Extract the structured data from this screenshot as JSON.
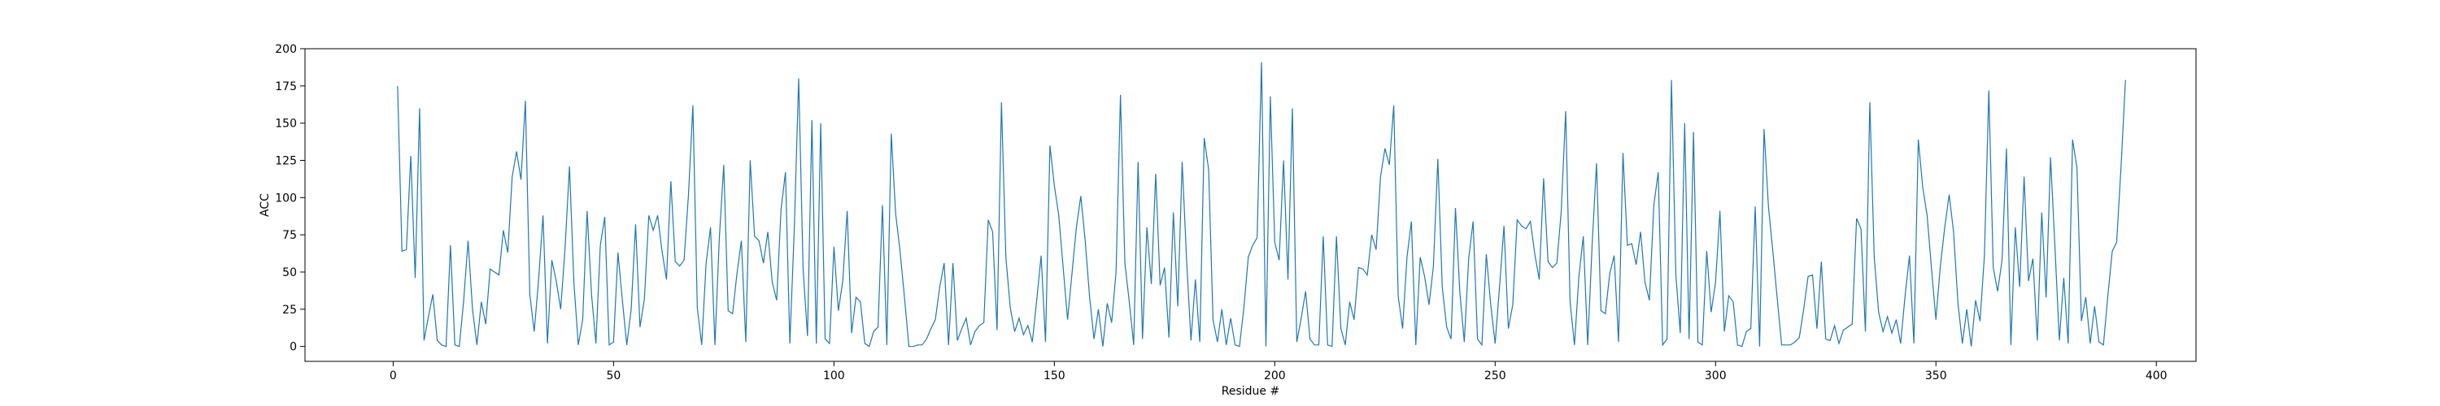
{
  "chart_data": {
    "type": "line",
    "title": "",
    "xlabel": "Residue #",
    "ylabel": "ACC",
    "xlim": [
      -20,
      409
    ],
    "ylim": [
      -10,
      200
    ],
    "xticks": [
      0,
      50,
      100,
      150,
      200,
      250,
      300,
      350,
      400
    ],
    "yticks": [
      0,
      25,
      50,
      75,
      100,
      125,
      150,
      175,
      200
    ],
    "grid": false,
    "line_color": "#1f77b4",
    "series": [
      {
        "x_start": 1,
        "values": [
          175,
          64,
          65,
          128,
          46,
          160,
          4,
          20,
          35,
          4,
          1,
          0,
          68,
          1,
          0,
          31,
          71,
          25,
          1,
          30,
          15,
          52,
          50,
          48,
          78,
          63,
          114,
          131,
          112,
          165,
          35,
          10,
          45,
          88,
          2,
          58,
          44,
          25,
          66,
          121,
          43,
          1,
          18,
          91,
          35,
          2,
          68,
          87,
          1,
          3,
          63,
          31,
          1,
          25,
          82,
          13,
          32,
          88,
          78,
          88,
          64,
          45,
          111,
          57,
          54,
          58,
          102,
          162,
          26,
          1,
          56,
          80,
          1,
          73,
          122,
          24,
          22,
          49,
          71,
          3,
          125,
          74,
          71,
          56,
          77,
          43,
          31,
          92,
          117,
          2,
          79,
          180,
          52,
          7,
          152,
          2,
          150,
          5,
          2,
          67,
          24,
          44,
          91,
          9,
          33,
          30,
          2,
          0,
          10,
          13,
          95,
          1,
          143,
          89,
          64,
          33,
          0,
          0,
          1,
          1,
          5,
          12,
          18,
          40,
          56,
          1,
          56,
          4,
          12,
          19,
          1,
          10,
          14,
          16,
          85,
          77,
          11,
          164,
          60,
          26,
          10,
          19,
          8,
          14,
          3,
          31,
          61,
          3,
          135,
          108,
          88,
          53,
          18,
          49,
          80,
          101,
          71,
          33,
          5,
          25,
          0,
          29,
          16,
          50,
          169,
          56,
          30,
          1,
          124,
          5,
          80,
          42,
          116,
          41,
          53,
          6,
          90,
          27,
          124,
          58,
          4,
          45,
          3,
          140,
          119,
          18,
          3,
          25,
          1,
          19,
          1,
          0,
          26,
          60,
          68,
          73,
          191,
          0,
          168,
          70,
          58,
          125,
          45,
          160,
          3,
          19,
          37,
          5,
          1,
          1,
          74,
          1,
          0,
          74,
          12,
          1,
          30,
          18,
          53,
          52,
          48,
          75,
          65,
          114,
          133,
          122,
          162,
          34,
          12,
          60,
          84,
          1,
          60,
          47,
          28,
          54,
          126,
          40,
          13,
          5,
          93,
          36,
          3,
          59,
          84,
          5,
          1,
          62,
          28,
          2,
          40,
          81,
          12,
          28,
          85,
          81,
          79,
          84,
          62,
          45,
          113,
          57,
          53,
          56,
          91,
          158,
          30,
          1,
          47,
          74,
          1,
          68,
          123,
          24,
          22,
          49,
          61,
          3,
          130,
          68,
          69,
          55,
          77,
          43,
          31,
          95,
          117,
          1,
          5,
          179,
          48,
          9,
          150,
          5,
          144,
          3,
          1,
          64,
          23,
          43,
          91,
          10,
          34,
          30,
          1,
          0,
          10,
          12,
          94,
          0,
          146,
          94,
          64,
          32,
          1,
          1,
          1,
          3,
          6,
          25,
          47,
          48,
          12,
          57,
          5,
          4,
          14,
          2,
          11,
          13,
          15,
          86,
          79,
          10,
          164,
          60,
          23,
          10,
          20,
          9,
          18,
          2,
          34,
          61,
          2,
          139,
          107,
          88,
          52,
          18,
          54,
          80,
          102,
          77,
          29,
          2,
          25,
          0,
          31,
          17,
          61,
          172,
          53,
          37,
          58,
          133,
          1,
          80,
          40,
          114,
          44,
          59,
          4,
          90,
          33,
          127,
          67,
          4,
          46,
          2,
          139,
          120,
          17,
          33,
          2,
          27,
          3,
          1,
          34,
          64,
          70,
          121,
          179
        ]
      }
    ]
  }
}
